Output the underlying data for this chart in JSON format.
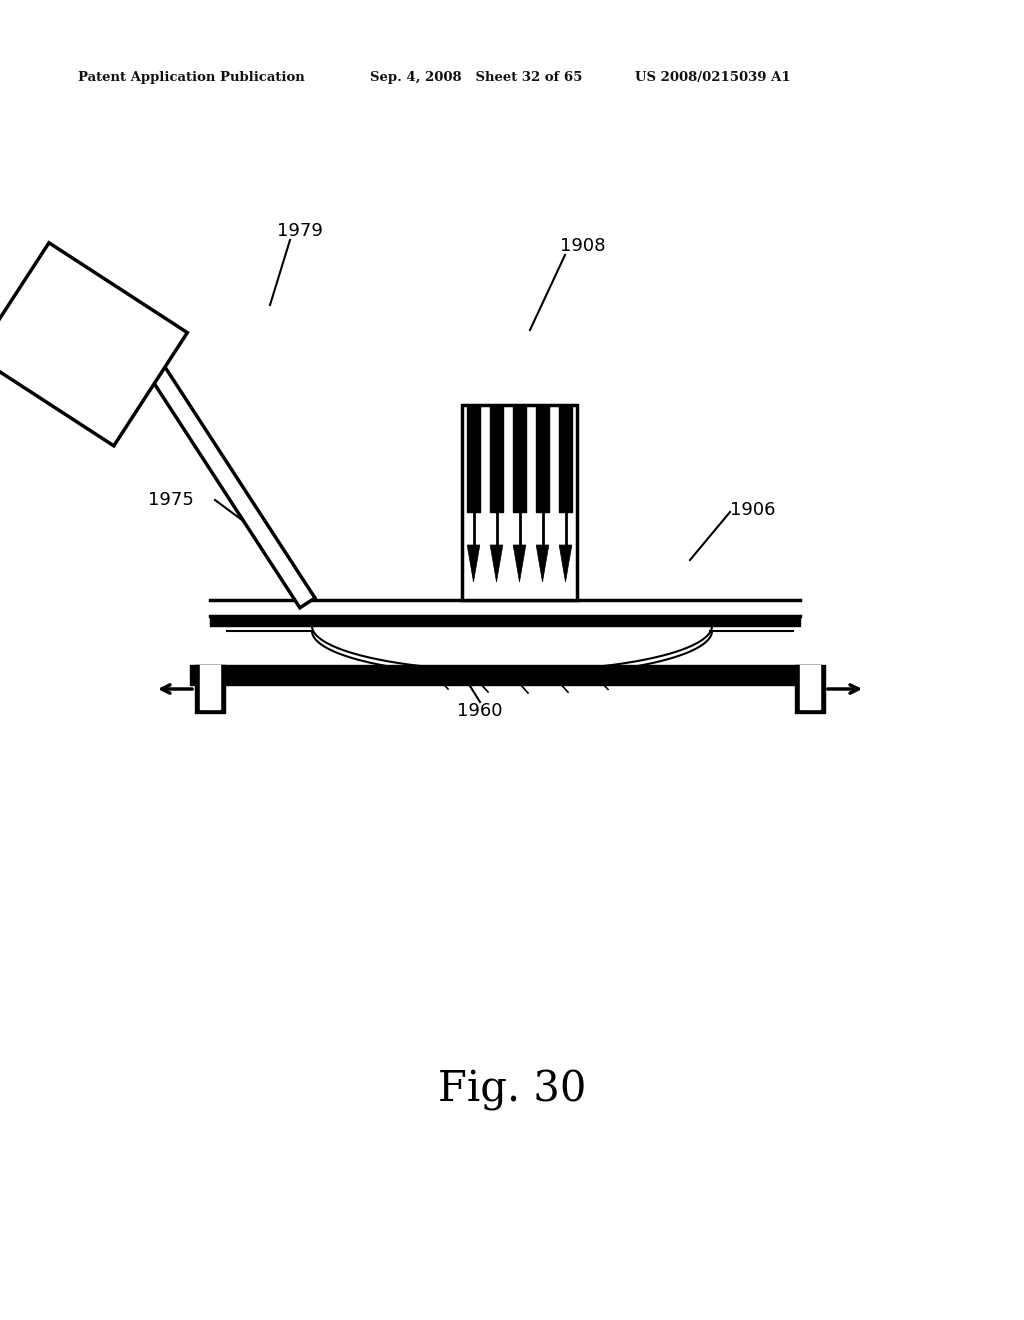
{
  "bg_color": "#ffffff",
  "header_left": "Patent Application Publication",
  "header_mid": "Sep. 4, 2008   Sheet 32 of 65",
  "header_right": "US 2008/0215039 A1",
  "fig_label": "Fig. 30",
  "line_color": "#000000",
  "lw_thin": 1.5,
  "lw_thick": 2.5,
  "lw_vthick": 4.5,
  "label_fontsize": 13,
  "fig_label_fontsize": 30,
  "header_fontsize": 9.5
}
